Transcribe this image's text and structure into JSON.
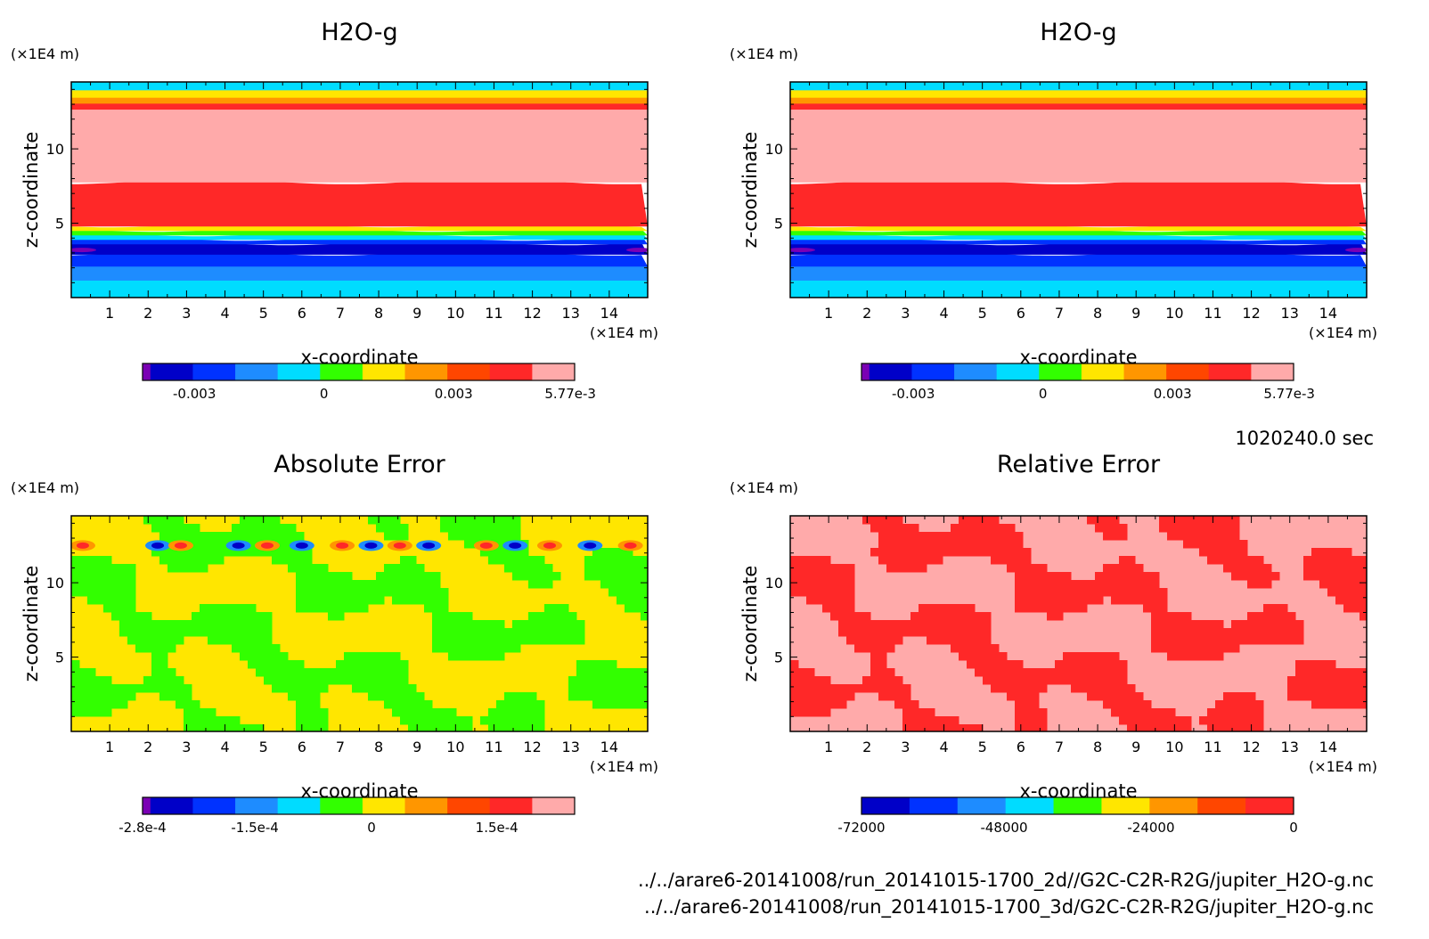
{
  "time_label": "1020240.0 sec",
  "footer_lines": [
    "../../arare6-20141008/run_20141015-1700_2d//G2C-C2R-R2G/jupiter_H2O-g.nc",
    "../../arare6-20141008/run_20141015-1700_3d/G2C-C2R-R2G/jupiter_H2O-g.nc"
  ],
  "chart_data": [
    {
      "type": "heatmap",
      "title": "H2O-g",
      "xlabel": "x-coordinate",
      "ylabel": "z-coordinate",
      "x_unit": "(×1E4 m)",
      "y_unit": "(×1E4 m)",
      "xlim": [
        0,
        15
      ],
      "ylim": [
        0,
        14.5
      ],
      "xticks": [
        "1",
        "2",
        "3",
        "4",
        "5",
        "6",
        "7",
        "8",
        "9",
        "10",
        "11",
        "12",
        "13",
        "14"
      ],
      "yticks": [
        "5",
        "10"
      ],
      "colorbar": {
        "levels": 11,
        "colors": [
          "#7a00b4",
          "#0000c8",
          "#0032ff",
          "#1e8cff",
          "#00dcff",
          "#32ff00",
          "#ffe600",
          "#ff9600",
          "#ff4600",
          "#ff2828",
          "#ffaaaa"
        ],
        "tick_labels": [
          "-0.003",
          "0",
          "0.003",
          "5.77e-3"
        ]
      },
      "field_profile_z": [
        {
          "z": 0.0,
          "level": 4
        },
        {
          "z": 1.2,
          "level": 3
        },
        {
          "z": 2.2,
          "level": 2
        },
        {
          "z": 3.0,
          "level": 1
        },
        {
          "z": 3.7,
          "level": 2
        },
        {
          "z": 4.0,
          "level": 4
        },
        {
          "z": 4.3,
          "level": 5
        },
        {
          "z": 4.6,
          "level": 6
        },
        {
          "z": 4.9,
          "level": 9
        },
        {
          "z": 7.8,
          "level": 10
        },
        {
          "z": 12.7,
          "level": 9
        },
        {
          "z": 13.1,
          "level": 7
        },
        {
          "z": 13.5,
          "level": 6
        },
        {
          "z": 14.0,
          "level": 4
        }
      ]
    },
    {
      "type": "heatmap",
      "title": "H2O-g",
      "xlabel": "x-coordinate",
      "ylabel": "z-coordinate",
      "x_unit": "(×1E4 m)",
      "y_unit": "(×1E4 m)",
      "xlim": [
        0,
        15
      ],
      "ylim": [
        0,
        14.5
      ],
      "xticks": [
        "1",
        "2",
        "3",
        "4",
        "5",
        "6",
        "7",
        "8",
        "9",
        "10",
        "11",
        "12",
        "13",
        "14"
      ],
      "yticks": [
        "5",
        "10"
      ],
      "colorbar": {
        "levels": 11,
        "colors": [
          "#7a00b4",
          "#0000c8",
          "#0032ff",
          "#1e8cff",
          "#00dcff",
          "#32ff00",
          "#ffe600",
          "#ff9600",
          "#ff4600",
          "#ff2828",
          "#ffaaaa"
        ],
        "tick_labels": [
          "-0.003",
          "0",
          "0.003",
          "5.77e-3"
        ]
      }
    },
    {
      "type": "heatmap",
      "title": "Absolute Error",
      "xlabel": "x-coordinate",
      "ylabel": "z-coordinate",
      "x_unit": "(×1E4 m)",
      "y_unit": "(×1E4 m)",
      "xlim": [
        0,
        15
      ],
      "ylim": [
        0,
        14.5
      ],
      "xticks": [
        "1",
        "2",
        "3",
        "4",
        "5",
        "6",
        "7",
        "8",
        "9",
        "10",
        "11",
        "12",
        "13",
        "14"
      ],
      "yticks": [
        "5",
        "10"
      ],
      "colorbar": {
        "levels": 11,
        "colors": [
          "#7a00b4",
          "#0000c8",
          "#0032ff",
          "#1e8cff",
          "#00dcff",
          "#32ff00",
          "#ffe600",
          "#ff9600",
          "#ff4600",
          "#ff2828",
          "#ffaaaa"
        ],
        "tick_labels": [
          "-2.8e-4",
          "-1.5e-4",
          "0",
          "1.5e-4"
        ]
      }
    },
    {
      "type": "heatmap",
      "title": "Relative Error",
      "xlabel": "x-coordinate",
      "ylabel": "z-coordinate",
      "x_unit": "(×1E4 m)",
      "y_unit": "(×1E4 m)",
      "xlim": [
        0,
        15
      ],
      "ylim": [
        0,
        14.5
      ],
      "xticks": [
        "1",
        "2",
        "3",
        "4",
        "5",
        "6",
        "7",
        "8",
        "9",
        "10",
        "11",
        "12",
        "13",
        "14"
      ],
      "yticks": [
        "5",
        "10"
      ],
      "colorbar": {
        "levels": 9,
        "colors": [
          "#0000c8",
          "#0032ff",
          "#1e8cff",
          "#00dcff",
          "#32ff00",
          "#ffe600",
          "#ff9600",
          "#ff4600",
          "#ff2828"
        ],
        "tick_labels": [
          "-72000",
          "-48000",
          "-24000",
          "0"
        ]
      }
    }
  ]
}
